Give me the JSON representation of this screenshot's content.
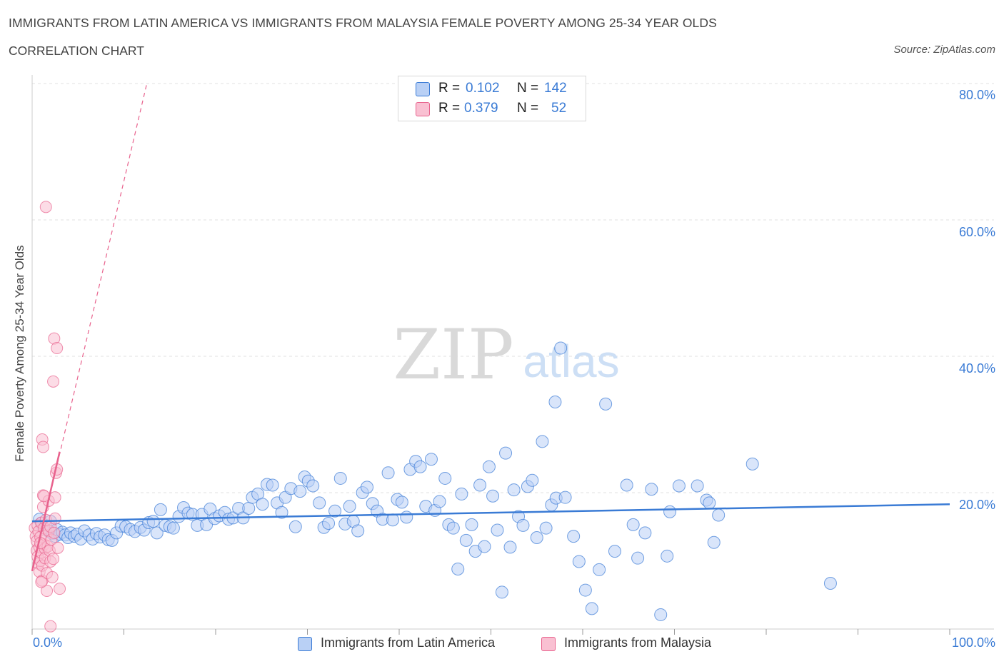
{
  "header": {
    "title": "IMMIGRANTS FROM LATIN AMERICA VS IMMIGRANTS FROM MALAYSIA FEMALE POVERTY AMONG 25-34 YEAR OLDS",
    "subtitle": "CORRELATION CHART",
    "source": "Source: ZipAtlas.com"
  },
  "stats_legend": {
    "rows": [
      {
        "r_label": "R =",
        "r_value": "0.102",
        "n_label": "N =",
        "n_value": "142",
        "color": "#b9d0f5"
      },
      {
        "r_label": "R =",
        "r_value": "0.379",
        "n_label": "N =",
        "n_value": "52",
        "color": "#f9c0d2"
      }
    ]
  },
  "bottom_legend": {
    "items": [
      {
        "label": "Immigrants from Latin America",
        "color": "#b9d0f5"
      },
      {
        "label": "Immigrants from Malaysia",
        "color": "#f9c0d2"
      }
    ]
  },
  "watermark": {
    "zip": "ZIP",
    "atlas": "atlas"
  },
  "colors": {
    "blue": "#3a7bd5",
    "blue_fill": "#b9d0f5",
    "pink": "#e8628d",
    "pink_fill": "#f9c0d2",
    "grid": "#e0e0e0"
  },
  "chart_data": {
    "type": "scatter",
    "title": "IMMIGRANTS FROM LATIN AMERICA VS IMMIGRANTS FROM MALAYSIA FEMALE POVERTY AMONG 25-34 YEAR OLDS",
    "xlabel": "",
    "ylabel": "Female Poverty Among 25-34 Year Olds",
    "xlim": [
      0,
      100
    ],
    "ylim": [
      0,
      80
    ],
    "x_tick_labels": [
      "0.0%",
      "100.0%"
    ],
    "y_ticks": [
      20,
      40,
      60,
      80
    ],
    "y_tick_labels": [
      "20.0%",
      "40.0%",
      "60.0%",
      "80.0%"
    ],
    "grid": true,
    "series": [
      {
        "name": "Immigrants from Latin America",
        "r": 0.102,
        "n": 142,
        "trend": {
          "x": [
            0,
            100
          ],
          "y": [
            15.8,
            18.3
          ]
        },
        "points": [
          [
            0.8,
            16.1
          ],
          [
            1.0,
            15.5
          ],
          [
            1.2,
            14.8
          ],
          [
            1.5,
            15.2
          ],
          [
            1.8,
            14.3
          ],
          [
            2.0,
            15.8
          ],
          [
            2.2,
            14.0
          ],
          [
            2.5,
            13.6
          ],
          [
            2.7,
            14.6
          ],
          [
            3.0,
            13.9
          ],
          [
            3.3,
            14.2
          ],
          [
            3.6,
            13.8
          ],
          [
            3.9,
            13.4
          ],
          [
            4.2,
            14.1
          ],
          [
            4.6,
            13.6
          ],
          [
            4.9,
            13.9
          ],
          [
            5.3,
            13.2
          ],
          [
            5.7,
            14.4
          ],
          [
            6.2,
            13.8
          ],
          [
            6.6,
            13.2
          ],
          [
            7.0,
            14.0
          ],
          [
            7.4,
            13.5
          ],
          [
            7.9,
            13.8
          ],
          [
            8.3,
            13.1
          ],
          [
            8.7,
            13.0
          ],
          [
            9.2,
            14.1
          ],
          [
            9.7,
            15.1
          ],
          [
            10.2,
            15.0
          ],
          [
            10.7,
            14.6
          ],
          [
            11.2,
            14.3
          ],
          [
            11.8,
            14.9
          ],
          [
            12.2,
            14.5
          ],
          [
            12.7,
            15.6
          ],
          [
            13.2,
            15.8
          ],
          [
            13.6,
            14.1
          ],
          [
            14.0,
            17.5
          ],
          [
            14.5,
            15.2
          ],
          [
            15.0,
            15.0
          ],
          [
            15.4,
            14.8
          ],
          [
            16.0,
            16.5
          ],
          [
            16.5,
            17.8
          ],
          [
            17.0,
            17.0
          ],
          [
            17.5,
            16.8
          ],
          [
            18.0,
            15.2
          ],
          [
            18.5,
            16.8
          ],
          [
            19.0,
            15.3
          ],
          [
            19.4,
            17.6
          ],
          [
            19.9,
            16.2
          ],
          [
            20.4,
            16.6
          ],
          [
            21.0,
            17.1
          ],
          [
            21.4,
            16.1
          ],
          [
            21.9,
            16.3
          ],
          [
            22.5,
            17.7
          ],
          [
            23.0,
            16.3
          ],
          [
            23.6,
            17.7
          ],
          [
            24.0,
            19.3
          ],
          [
            24.6,
            19.8
          ],
          [
            25.1,
            18.3
          ],
          [
            25.6,
            21.2
          ],
          [
            26.2,
            21.1
          ],
          [
            26.7,
            18.5
          ],
          [
            27.2,
            17.1
          ],
          [
            27.6,
            19.3
          ],
          [
            28.2,
            20.6
          ],
          [
            28.7,
            15.0
          ],
          [
            29.2,
            20.2
          ],
          [
            29.7,
            22.3
          ],
          [
            30.1,
            21.7
          ],
          [
            30.6,
            21.0
          ],
          [
            31.3,
            18.5
          ],
          [
            31.8,
            14.9
          ],
          [
            32.3,
            15.5
          ],
          [
            33.0,
            17.3
          ],
          [
            33.6,
            22.1
          ],
          [
            34.1,
            15.4
          ],
          [
            34.6,
            18.0
          ],
          [
            35.0,
            15.8
          ],
          [
            35.5,
            14.4
          ],
          [
            36.0,
            20.0
          ],
          [
            36.5,
            20.8
          ],
          [
            37.1,
            18.4
          ],
          [
            37.6,
            17.3
          ],
          [
            38.2,
            16.1
          ],
          [
            38.8,
            22.9
          ],
          [
            39.3,
            16.0
          ],
          [
            39.8,
            19.0
          ],
          [
            40.3,
            18.6
          ],
          [
            40.8,
            16.4
          ],
          [
            41.2,
            23.4
          ],
          [
            41.8,
            24.6
          ],
          [
            42.3,
            23.8
          ],
          [
            42.9,
            18.0
          ],
          [
            43.5,
            24.9
          ],
          [
            43.9,
            17.4
          ],
          [
            44.4,
            18.7
          ],
          [
            45.0,
            22.1
          ],
          [
            45.4,
            15.3
          ],
          [
            45.9,
            14.8
          ],
          [
            46.4,
            8.8
          ],
          [
            46.8,
            19.8
          ],
          [
            47.3,
            13.0
          ],
          [
            47.9,
            15.3
          ],
          [
            48.3,
            11.4
          ],
          [
            48.8,
            21.1
          ],
          [
            49.3,
            12.1
          ],
          [
            49.8,
            23.8
          ],
          [
            50.2,
            19.5
          ],
          [
            50.7,
            14.5
          ],
          [
            51.2,
            5.4
          ],
          [
            51.6,
            25.8
          ],
          [
            52.1,
            12.0
          ],
          [
            52.5,
            20.4
          ],
          [
            53.0,
            16.5
          ],
          [
            53.5,
            15.2
          ],
          [
            54.0,
            20.9
          ],
          [
            54.5,
            21.8
          ],
          [
            55.0,
            13.4
          ],
          [
            55.6,
            27.5
          ],
          [
            56.0,
            14.8
          ],
          [
            56.6,
            18.2
          ],
          [
            57.1,
            19.2
          ],
          [
            57.6,
            41.2
          ],
          [
            57.0,
            33.3
          ],
          [
            58.1,
            19.3
          ],
          [
            59.0,
            13.6
          ],
          [
            59.6,
            9.9
          ],
          [
            60.3,
            5.7
          ],
          [
            61.0,
            3.0
          ],
          [
            61.8,
            8.7
          ],
          [
            62.5,
            33.0
          ],
          [
            63.5,
            11.4
          ],
          [
            64.8,
            21.1
          ],
          [
            65.5,
            15.3
          ],
          [
            66.0,
            10.4
          ],
          [
            66.8,
            14.1
          ],
          [
            67.5,
            20.5
          ],
          [
            68.5,
            2.1
          ],
          [
            69.2,
            10.7
          ],
          [
            69.5,
            17.2
          ],
          [
            70.5,
            21.0
          ],
          [
            72.5,
            21.0
          ],
          [
            73.5,
            18.9
          ],
          [
            73.8,
            18.5
          ],
          [
            74.3,
            12.7
          ],
          [
            74.8,
            16.7
          ],
          [
            78.5,
            24.2
          ],
          [
            87.0,
            6.7
          ]
        ]
      },
      {
        "name": "Immigrants from Malaysia",
        "r": 0.379,
        "n": 52,
        "trend": {
          "x": [
            0,
            3.0
          ],
          "y": [
            8.5,
            26.0
          ]
        },
        "trend_extended": {
          "x": [
            0,
            12.5
          ],
          "y": [
            8.5,
            80
          ]
        },
        "points": [
          [
            0.3,
            14.8
          ],
          [
            0.4,
            13.6
          ],
          [
            0.5,
            12.9
          ],
          [
            0.5,
            11.5
          ],
          [
            0.6,
            15.2
          ],
          [
            0.6,
            10.6
          ],
          [
            0.7,
            9.6
          ],
          [
            0.7,
            14.3
          ],
          [
            0.8,
            12.0
          ],
          [
            0.8,
            8.4
          ],
          [
            0.9,
            10.0
          ],
          [
            0.9,
            13.5
          ],
          [
            1.0,
            15.6
          ],
          [
            1.0,
            11.2
          ],
          [
            1.1,
            9.3
          ],
          [
            1.1,
            7.1
          ],
          [
            1.2,
            17.9
          ],
          [
            1.2,
            19.6
          ],
          [
            1.3,
            14.8
          ],
          [
            1.3,
            12.4
          ],
          [
            1.4,
            11.8
          ],
          [
            1.4,
            10.4
          ],
          [
            1.5,
            13.7
          ],
          [
            1.5,
            16.0
          ],
          [
            1.6,
            8.2
          ],
          [
            1.6,
            5.6
          ],
          [
            1.7,
            12.1
          ],
          [
            1.8,
            18.8
          ],
          [
            1.8,
            14.4
          ],
          [
            1.9,
            11.5
          ],
          [
            2.0,
            9.9
          ],
          [
            2.0,
            15.0
          ],
          [
            2.1,
            13.1
          ],
          [
            2.2,
            7.6
          ],
          [
            2.3,
            10.3
          ],
          [
            2.4,
            14.1
          ],
          [
            2.5,
            16.2
          ],
          [
            2.5,
            19.3
          ],
          [
            2.6,
            22.9
          ],
          [
            2.7,
            23.4
          ],
          [
            2.8,
            11.9
          ],
          [
            3.0,
            5.9
          ],
          [
            1.1,
            27.8
          ],
          [
            1.2,
            26.7
          ],
          [
            1.5,
            61.9
          ],
          [
            2.3,
            36.3
          ],
          [
            2.4,
            42.6
          ],
          [
            2.7,
            41.2
          ],
          [
            2.0,
            0.4
          ],
          [
            1.3,
            19.5
          ],
          [
            0.9,
            12.6
          ],
          [
            1.0,
            6.9
          ]
        ]
      }
    ]
  }
}
